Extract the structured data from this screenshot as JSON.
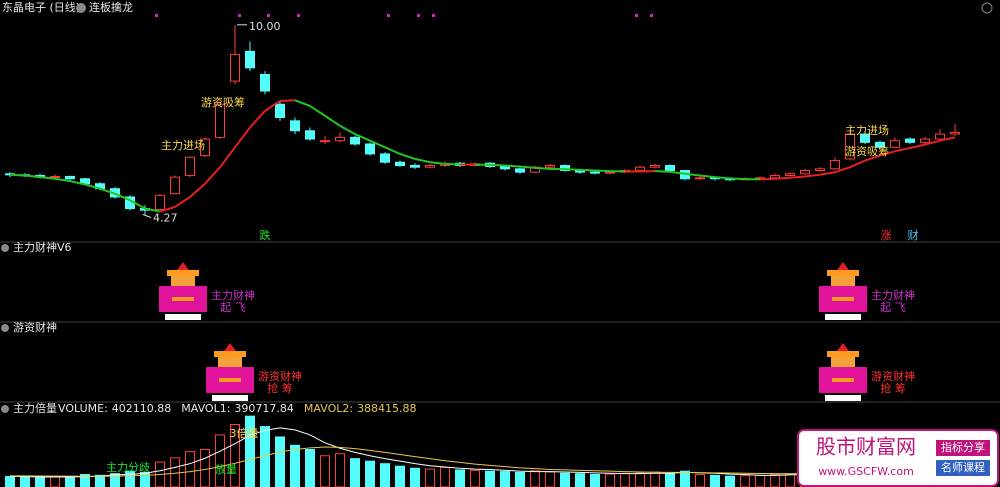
{
  "header": {
    "title": "东晶电子 (日线)",
    "indicator": "连板擒龙"
  },
  "chart_data": [
    {
      "type": "candlestick",
      "ylim": [
        3.5,
        10.75
      ],
      "up_color": "#ff3b3b",
      "down_color": "#54fcfc",
      "ma_up_color": "#e8201f",
      "ma_down_color": "#22c622",
      "high_label": "10.00",
      "low_label": "4.27",
      "annotations": [
        "主力进场",
        "游资吸筹",
        "跌",
        "主力进场",
        "游资吸筹",
        "涨",
        "财"
      ],
      "ohlc": [
        [
          5.5,
          5.55,
          5.4,
          5.47
        ],
        [
          5.47,
          5.52,
          5.4,
          5.45
        ],
        [
          5.45,
          5.5,
          5.36,
          5.4
        ],
        [
          5.4,
          5.48,
          5.36,
          5.42
        ],
        [
          5.42,
          5.45,
          5.3,
          5.35
        ],
        [
          5.35,
          5.38,
          5.15,
          5.2
        ],
        [
          5.2,
          5.25,
          5.0,
          5.05
        ],
        [
          5.05,
          5.1,
          4.75,
          4.8
        ],
        [
          4.8,
          4.85,
          4.4,
          4.45
        ],
        [
          4.45,
          4.55,
          4.27,
          4.4
        ],
        [
          4.42,
          4.9,
          4.4,
          4.85
        ],
        [
          4.9,
          5.45,
          4.88,
          5.4
        ],
        [
          5.45,
          6.02,
          5.4,
          6.0
        ],
        [
          6.05,
          6.6,
          6.0,
          6.55
        ],
        [
          6.6,
          7.62,
          6.55,
          7.6
        ],
        [
          8.3,
          10.0,
          8.2,
          9.1
        ],
        [
          9.2,
          9.5,
          8.6,
          8.7
        ],
        [
          8.5,
          8.6,
          7.9,
          8.0
        ],
        [
          7.6,
          7.7,
          7.1,
          7.2
        ],
        [
          7.1,
          7.2,
          6.7,
          6.8
        ],
        [
          6.8,
          6.9,
          6.5,
          6.55
        ],
        [
          6.5,
          6.65,
          6.4,
          6.5
        ],
        [
          6.5,
          6.75,
          6.45,
          6.6
        ],
        [
          6.6,
          6.65,
          6.35,
          6.4
        ],
        [
          6.4,
          6.45,
          6.05,
          6.1
        ],
        [
          6.1,
          6.15,
          5.8,
          5.85
        ],
        [
          5.85,
          5.9,
          5.7,
          5.75
        ],
        [
          5.75,
          5.82,
          5.65,
          5.7
        ],
        [
          5.7,
          5.8,
          5.66,
          5.75
        ],
        [
          5.75,
          5.88,
          5.7,
          5.8
        ],
        [
          5.82,
          5.86,
          5.7,
          5.75
        ],
        [
          5.75,
          5.85,
          5.72,
          5.8
        ],
        [
          5.82,
          5.85,
          5.68,
          5.72
        ],
        [
          5.72,
          5.76,
          5.6,
          5.65
        ],
        [
          5.65,
          5.7,
          5.5,
          5.55
        ],
        [
          5.55,
          5.75,
          5.52,
          5.7
        ],
        [
          5.7,
          5.8,
          5.66,
          5.75
        ],
        [
          5.75,
          5.78,
          5.56,
          5.6
        ],
        [
          5.6,
          5.64,
          5.5,
          5.55
        ],
        [
          5.55,
          5.6,
          5.48,
          5.52
        ],
        [
          5.52,
          5.6,
          5.5,
          5.55
        ],
        [
          5.55,
          5.65,
          5.52,
          5.6
        ],
        [
          5.6,
          5.75,
          5.58,
          5.7
        ],
        [
          5.7,
          5.8,
          5.66,
          5.75
        ],
        [
          5.75,
          5.78,
          5.55,
          5.6
        ],
        [
          5.6,
          5.62,
          5.3,
          5.35
        ],
        [
          5.35,
          5.42,
          5.3,
          5.38
        ],
        [
          5.38,
          5.4,
          5.3,
          5.35
        ],
        [
          5.35,
          5.38,
          5.28,
          5.32
        ],
        [
          5.32,
          5.4,
          5.3,
          5.35
        ],
        [
          5.35,
          5.42,
          5.32,
          5.38
        ],
        [
          5.38,
          5.5,
          5.36,
          5.45
        ],
        [
          5.45,
          5.55,
          5.42,
          5.5
        ],
        [
          5.5,
          5.65,
          5.48,
          5.6
        ],
        [
          5.6,
          5.7,
          5.55,
          5.65
        ],
        [
          5.65,
          6.0,
          5.62,
          5.9
        ],
        [
          5.95,
          6.75,
          5.9,
          6.7
        ],
        [
          6.7,
          6.8,
          6.4,
          6.45
        ],
        [
          6.45,
          6.5,
          6.25,
          6.3
        ],
        [
          6.3,
          6.6,
          6.28,
          6.5
        ],
        [
          6.55,
          6.6,
          6.4,
          6.45
        ],
        [
          6.45,
          6.62,
          6.4,
          6.55
        ],
        [
          6.55,
          6.85,
          6.5,
          6.7
        ],
        [
          6.7,
          7.0,
          6.65,
          6.75
        ]
      ],
      "ma": [
        5.47,
        5.45,
        5.4,
        5.35,
        5.28,
        5.18,
        5.05,
        4.9,
        4.7,
        4.45,
        4.36,
        4.5,
        4.8,
        5.2,
        5.7,
        6.3,
        6.9,
        7.4,
        7.7,
        7.72,
        7.55,
        7.25,
        6.95,
        6.7,
        6.5,
        6.3,
        6.1,
        5.95,
        5.85,
        5.8,
        5.78,
        5.78,
        5.77,
        5.75,
        5.72,
        5.68,
        5.65,
        5.64,
        5.62,
        5.6,
        5.58,
        5.57,
        5.57,
        5.58,
        5.56,
        5.5,
        5.45,
        5.4,
        5.36,
        5.34,
        5.33,
        5.35,
        5.38,
        5.42,
        5.47,
        5.55,
        5.7,
        5.9,
        6.05,
        6.18,
        6.28,
        6.38,
        6.5,
        6.6
      ]
    },
    {
      "type": "signal",
      "title": "主力财神V6",
      "color": "#cc33cc",
      "labels": [
        [
          "主力财神",
          "起 飞"
        ],
        [
          "主力财神",
          "起 飞"
        ]
      ]
    },
    {
      "type": "signal",
      "title": "游资财神",
      "color": "#ff3030",
      "labels": [
        [
          "游资财神",
          "抢 筹"
        ],
        [
          "游资财神",
          "抢 筹"
        ]
      ]
    },
    {
      "type": "bar",
      "title": "主力倍量",
      "ylim": [
        0,
        1800000
      ],
      "annotations": [
        "3倍量",
        "主力分歧",
        "放量"
      ],
      "series": [
        {
          "name": "VOLUME:",
          "color": "#dddddd",
          "values": [
            250000,
            230000,
            220000,
            260000,
            240000,
            300000,
            280000,
            320000,
            380000,
            350000,
            600000,
            700000,
            850000,
            900000,
            1250000,
            1500000,
            1700000,
            1450000,
            1200000,
            1000000,
            900000,
            750000,
            800000,
            680000,
            620000,
            560000,
            500000,
            450000,
            430000,
            470000,
            410000,
            400000,
            380000,
            370000,
            350000,
            390000,
            360000,
            330000,
            320000,
            300000,
            310000,
            330000,
            340000,
            360000,
            320000,
            380000,
            300000,
            280000,
            260000,
            270000,
            280000,
            300000,
            320000,
            340000,
            380000,
            520000,
            700000,
            600000,
            480000,
            450000,
            430000,
            420000,
            410000,
            402110.88
          ]
        },
        {
          "name": "MAVOL1:",
          "color": "#ffffff",
          "values": [
            260000,
            250000,
            240000,
            240000,
            240000,
            250000,
            260000,
            290000,
            300000,
            330000,
            390000,
            470000,
            560000,
            690000,
            860000,
            1040000,
            1240000,
            1360000,
            1420000,
            1370000,
            1250000,
            1060000,
            930000,
            830000,
            750000,
            680000,
            620000,
            560000,
            510000,
            480000,
            450000,
            430000,
            420000,
            400000,
            380000,
            370000,
            370000,
            360000,
            350000,
            340000,
            330000,
            320000,
            320000,
            330000,
            330000,
            350000,
            340000,
            330000,
            310000,
            300000,
            280000,
            280000,
            290000,
            300000,
            330000,
            370000,
            450000,
            510000,
            540000,
            550000,
            530000,
            470000,
            440000,
            390717.84
          ]
        },
        {
          "name": "MAVOL2:",
          "color": "#e8c74a",
          "values": [
            270000,
            268000,
            265000,
            262000,
            260000,
            258000,
            258000,
            262000,
            270000,
            280000,
            300000,
            330000,
            370000,
            420000,
            490000,
            570000,
            660000,
            750000,
            840000,
            900000,
            940000,
            960000,
            950000,
            920000,
            880000,
            830000,
            780000,
            730000,
            680000,
            630000,
            590000,
            550000,
            520000,
            490000,
            460000,
            440000,
            420000,
            410000,
            400000,
            390000,
            380000,
            370000,
            360000,
            355000,
            350000,
            350000,
            345000,
            340000,
            335000,
            330000,
            325000,
            320000,
            318000,
            318000,
            322000,
            330000,
            345000,
            360000,
            372000,
            380000,
            385000,
            387000,
            388000,
            388415.88
          ]
        }
      ]
    }
  ],
  "watermark": {
    "name": "股市财富网",
    "url": "www.GSCFW.com",
    "tags": [
      "指标分享",
      "名师课程"
    ]
  }
}
